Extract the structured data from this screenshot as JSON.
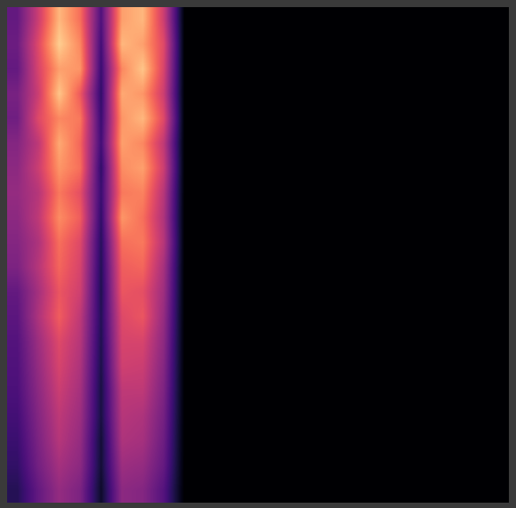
{
  "chart_data": {
    "type": "heatmap",
    "color": "magma",
    "tick_labels": false,
    "zlim": [
      0,
      1
    ],
    "cells": [
      [
        0.3,
        0.55,
        0.85,
        0.7,
        0.25,
        0.8,
        0.85,
        0.55,
        0,
        0,
        0,
        0,
        0,
        0,
        0,
        0,
        0,
        0,
        0,
        0,
        0,
        0,
        0,
        0
      ],
      [
        0.32,
        0.6,
        0.9,
        0.75,
        0.22,
        0.85,
        0.8,
        0.6,
        0,
        0,
        0,
        0,
        0,
        0,
        0,
        0,
        0,
        0,
        0,
        0,
        0,
        0,
        0,
        0
      ],
      [
        0.3,
        0.58,
        0.8,
        0.78,
        0.2,
        0.75,
        0.88,
        0.58,
        0,
        0,
        0,
        0,
        0,
        0,
        0,
        0,
        0,
        0,
        0,
        0,
        0,
        0,
        0,
        0
      ],
      [
        0.35,
        0.55,
        0.88,
        0.65,
        0.18,
        0.82,
        0.78,
        0.55,
        0,
        0,
        0,
        0,
        0,
        0,
        0,
        0,
        0,
        0,
        0,
        0,
        0,
        0,
        0,
        0
      ],
      [
        0.33,
        0.6,
        0.75,
        0.72,
        0.2,
        0.78,
        0.85,
        0.6,
        0,
        0,
        0,
        0,
        0,
        0,
        0,
        0,
        0,
        0,
        0,
        0,
        0,
        0,
        0,
        0
      ],
      [
        0.38,
        0.52,
        0.82,
        0.68,
        0.22,
        0.8,
        0.75,
        0.52,
        0,
        0,
        0,
        0,
        0,
        0,
        0,
        0,
        0,
        0,
        0,
        0,
        0,
        0,
        0,
        0
      ],
      [
        0.4,
        0.55,
        0.78,
        0.7,
        0.18,
        0.76,
        0.8,
        0.55,
        0,
        0,
        0,
        0,
        0,
        0,
        0,
        0,
        0,
        0,
        0,
        0,
        0,
        0,
        0,
        0
      ],
      [
        0.42,
        0.5,
        0.72,
        0.62,
        0.2,
        0.72,
        0.74,
        0.5,
        0,
        0,
        0,
        0,
        0,
        0,
        0,
        0,
        0,
        0,
        0,
        0,
        0,
        0,
        0,
        0
      ],
      [
        0.4,
        0.52,
        0.76,
        0.66,
        0.18,
        0.78,
        0.7,
        0.48,
        0,
        0,
        0,
        0,
        0,
        0,
        0,
        0,
        0,
        0,
        0,
        0,
        0,
        0,
        0,
        0
      ],
      [
        0.38,
        0.48,
        0.7,
        0.6,
        0.16,
        0.7,
        0.72,
        0.5,
        0,
        0,
        0,
        0,
        0,
        0,
        0,
        0,
        0,
        0,
        0,
        0,
        0,
        0,
        0,
        0
      ],
      [
        0.36,
        0.5,
        0.68,
        0.58,
        0.15,
        0.66,
        0.68,
        0.46,
        0,
        0,
        0,
        0,
        0,
        0,
        0,
        0,
        0,
        0,
        0,
        0,
        0,
        0,
        0,
        0
      ],
      [
        0.3,
        0.46,
        0.64,
        0.56,
        0.14,
        0.64,
        0.62,
        0.44,
        0,
        0,
        0,
        0,
        0,
        0,
        0,
        0,
        0,
        0,
        0,
        0,
        0,
        0,
        0,
        0
      ],
      [
        0.28,
        0.48,
        0.66,
        0.52,
        0.15,
        0.6,
        0.64,
        0.42,
        0,
        0,
        0,
        0,
        0,
        0,
        0,
        0,
        0,
        0,
        0,
        0,
        0,
        0,
        0,
        0
      ],
      [
        0.26,
        0.44,
        0.6,
        0.5,
        0.14,
        0.58,
        0.58,
        0.4,
        0,
        0,
        0,
        0,
        0,
        0,
        0,
        0,
        0,
        0,
        0,
        0,
        0,
        0,
        0,
        0
      ],
      [
        0.25,
        0.42,
        0.58,
        0.48,
        0.13,
        0.56,
        0.55,
        0.38,
        0,
        0,
        0,
        0,
        0,
        0,
        0,
        0,
        0,
        0,
        0,
        0,
        0,
        0,
        0,
        0
      ],
      [
        0.24,
        0.4,
        0.55,
        0.46,
        0.12,
        0.52,
        0.52,
        0.36,
        0,
        0,
        0,
        0,
        0,
        0,
        0,
        0,
        0,
        0,
        0,
        0,
        0,
        0,
        0,
        0
      ],
      [
        0.22,
        0.38,
        0.52,
        0.44,
        0.12,
        0.5,
        0.48,
        0.34,
        0,
        0,
        0,
        0,
        0,
        0,
        0,
        0,
        0,
        0,
        0,
        0,
        0,
        0,
        0,
        0
      ],
      [
        0.2,
        0.36,
        0.5,
        0.42,
        0.1,
        0.48,
        0.46,
        0.32,
        0,
        0,
        0,
        0,
        0,
        0,
        0,
        0,
        0,
        0,
        0,
        0,
        0,
        0,
        0,
        0
      ],
      [
        0.18,
        0.34,
        0.46,
        0.4,
        0.1,
        0.44,
        0.42,
        0.3,
        0,
        0,
        0,
        0,
        0,
        0,
        0,
        0,
        0,
        0,
        0,
        0,
        0,
        0,
        0,
        0
      ],
      [
        0.15,
        0.3,
        0.42,
        0.36,
        0.08,
        0.4,
        0.38,
        0.26,
        0,
        0,
        0,
        0,
        0,
        0,
        0,
        0,
        0,
        0,
        0,
        0,
        0,
        0,
        0,
        0
      ]
    ]
  }
}
